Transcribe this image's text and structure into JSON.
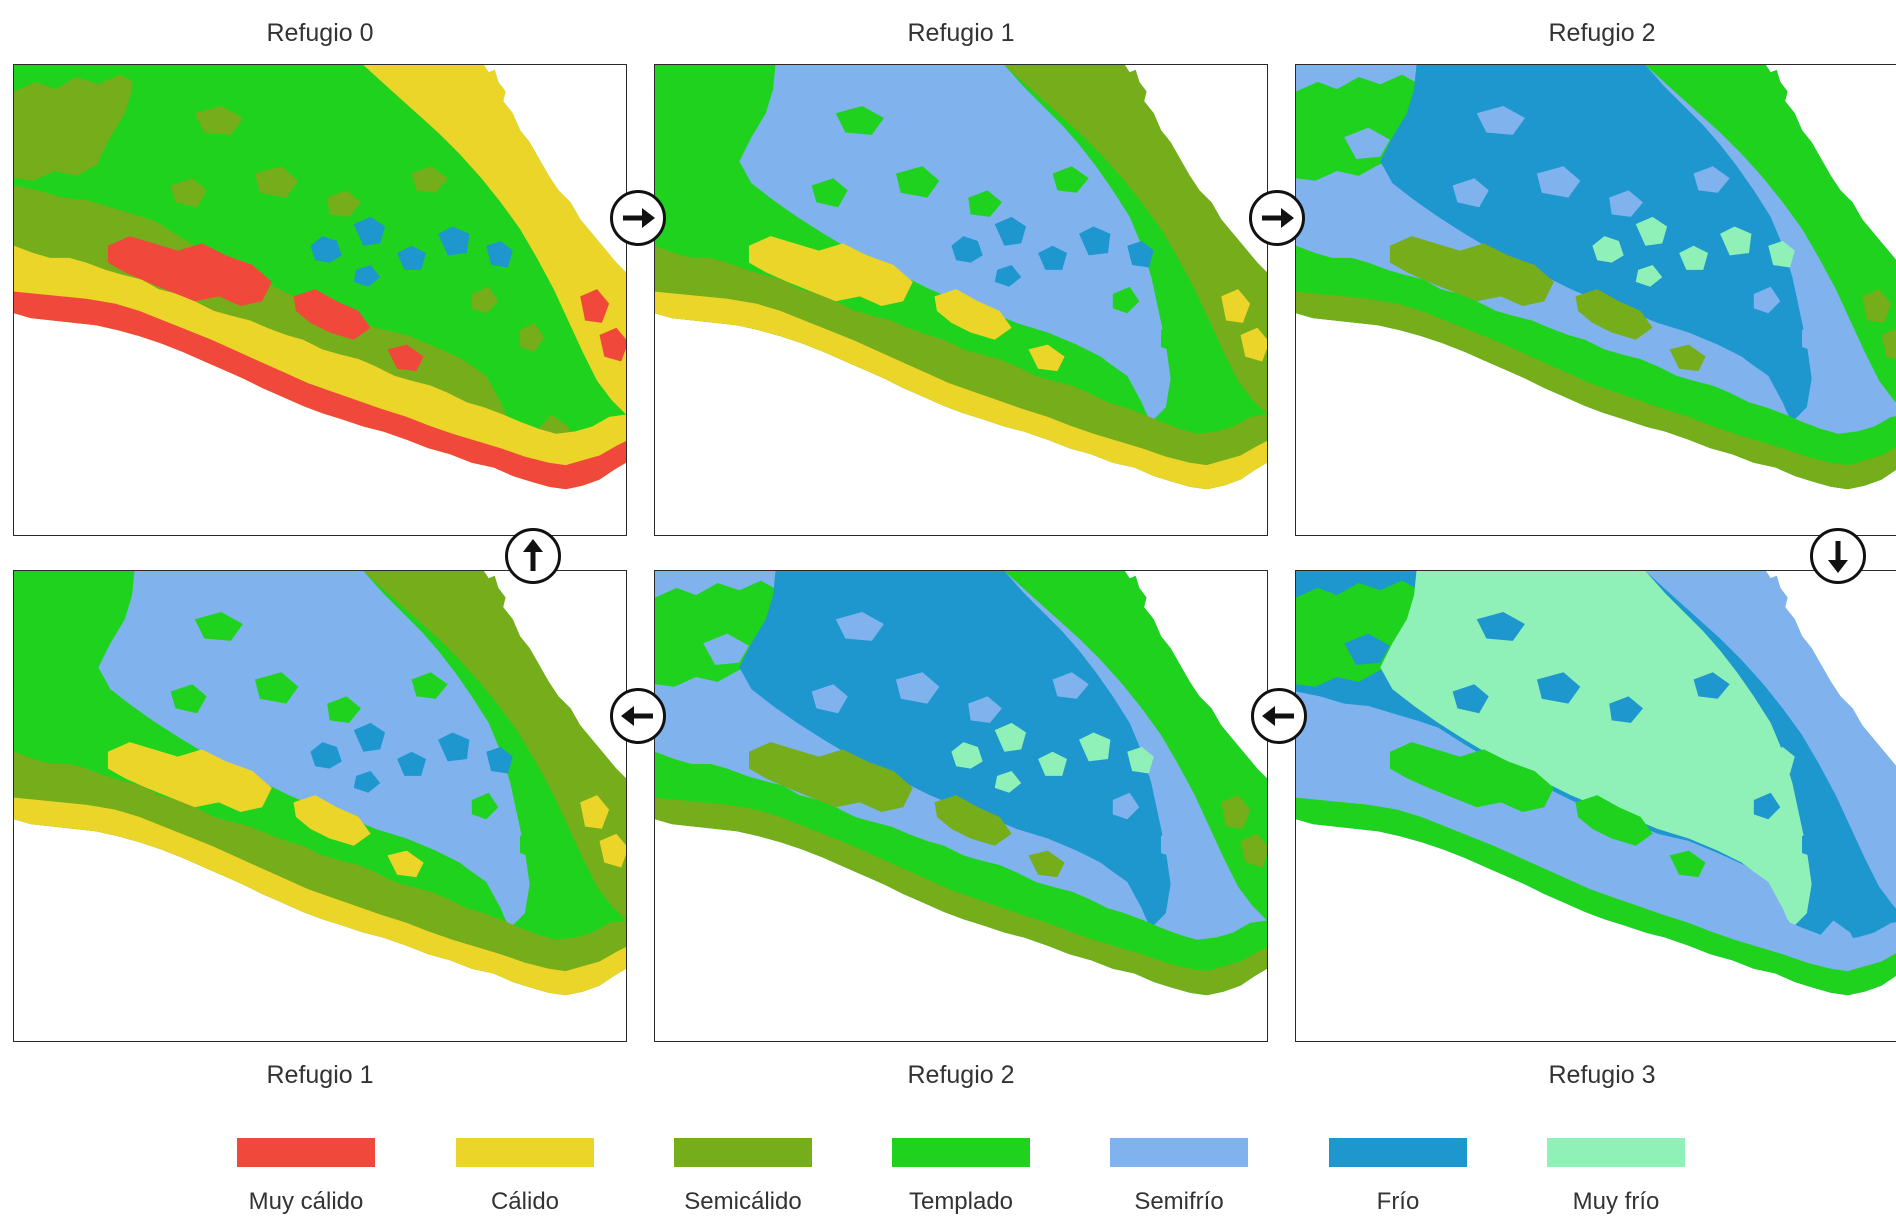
{
  "panels_top": [
    {
      "title": "Refugio 0"
    },
    {
      "title": "Refugio 1"
    },
    {
      "title": "Refugio 2"
    }
  ],
  "panels_bottom": [
    {
      "title": "Refugio 1"
    },
    {
      "title": "Refugio 2"
    },
    {
      "title": "Refugio 3"
    }
  ],
  "arrows": [
    "arrow-right-icon",
    "arrow-right-icon",
    "arrow-up-icon",
    "arrow-down-icon",
    "arrow-left-icon",
    "arrow-left-icon"
  ],
  "legend": [
    {
      "label": "Muy cálido",
      "color": "#f0493b"
    },
    {
      "label": "Cálido",
      "color": "#ebd528"
    },
    {
      "label": "Semicálido",
      "color": "#76ad1b"
    },
    {
      "label": "Templado",
      "color": "#1fd21d"
    },
    {
      "label": "Semifrío",
      "color": "#80b3ee"
    },
    {
      "label": "Frío",
      "color": "#1e97cf"
    },
    {
      "label": "Muy frío",
      "color": "#8ff1b7"
    }
  ]
}
